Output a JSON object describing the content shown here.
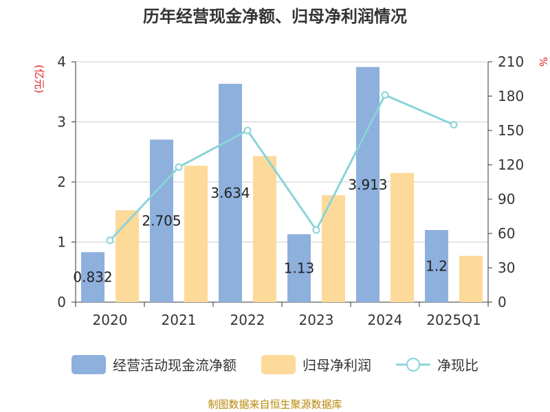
{
  "chart_data": {
    "type": "bar",
    "title": "历年经营现金净额、归母净利润情况",
    "categories": [
      "2020",
      "2021",
      "2022",
      "2023",
      "2024",
      "2025Q1"
    ],
    "left_axis": {
      "unit_label": "(亿元)",
      "ticks": [
        "0",
        "1",
        "2",
        "3",
        "4"
      ],
      "range": [
        0,
        4
      ]
    },
    "right_axis": {
      "unit_label": "%",
      "ticks": [
        "0",
        "30",
        "60",
        "90",
        "120",
        "150",
        "180",
        "210"
      ],
      "range": [
        0,
        210
      ]
    },
    "series": [
      {
        "name": "经营活动现金流净额",
        "kind": "bar",
        "axis": "left",
        "color": "#8eb0dc",
        "values": [
          0.832,
          2.705,
          3.634,
          1.13,
          3.913,
          1.2
        ],
        "data_labels": [
          "0.832",
          "2.705",
          "3.634",
          "1.13",
          "3.913",
          "1.2"
        ]
      },
      {
        "name": "归母净利润",
        "kind": "bar",
        "axis": "left",
        "color": "#fdd99a",
        "values": [
          1.53,
          2.27,
          2.43,
          1.78,
          2.15,
          0.77
        ]
      },
      {
        "name": "净现比",
        "kind": "line",
        "axis": "right",
        "color": "#88d4d8",
        "values": [
          54,
          118,
          150,
          63,
          181,
          155
        ]
      }
    ],
    "grid": true,
    "legend_position": "bottom"
  },
  "source_note": "制图数据来自恒生聚源数据库"
}
